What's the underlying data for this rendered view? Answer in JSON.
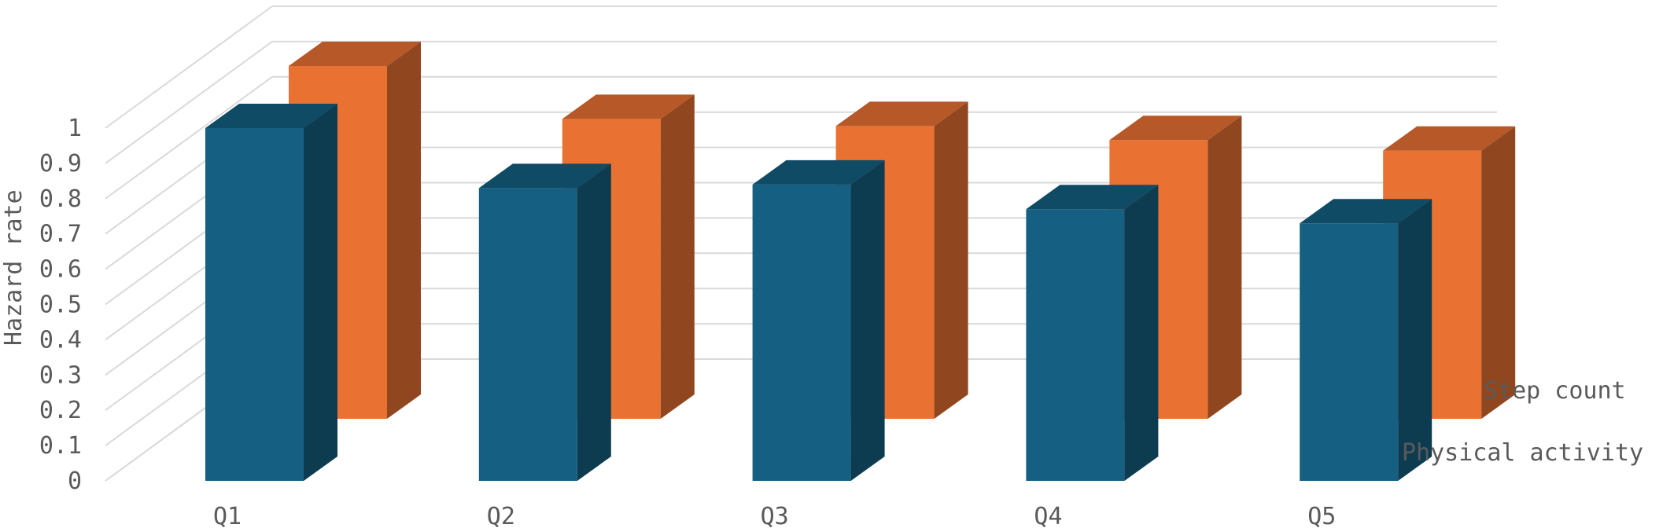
{
  "chart_data": {
    "type": "bar",
    "chart_style": "3d-clustered-column",
    "categories": [
      "Q1",
      "Q2",
      "Q3",
      "Q4",
      "Q5"
    ],
    "series": [
      {
        "name": "Step count",
        "color": "#E97132",
        "values": [
          1.0,
          0.85,
          0.83,
          0.79,
          0.76
        ]
      },
      {
        "name": "Physical activity",
        "color": "#156082",
        "values": [
          1.0,
          0.83,
          0.84,
          0.77,
          0.73
        ]
      }
    ],
    "ylabel": "Hazard rate",
    "ylim": [
      0,
      1
    ],
    "y_ticks": [
      "0",
      "0.1",
      "0.2",
      "0.3",
      "0.4",
      "0.5",
      "0.6",
      "0.7",
      "0.8",
      "0.9",
      "1"
    ],
    "grid": true
  }
}
